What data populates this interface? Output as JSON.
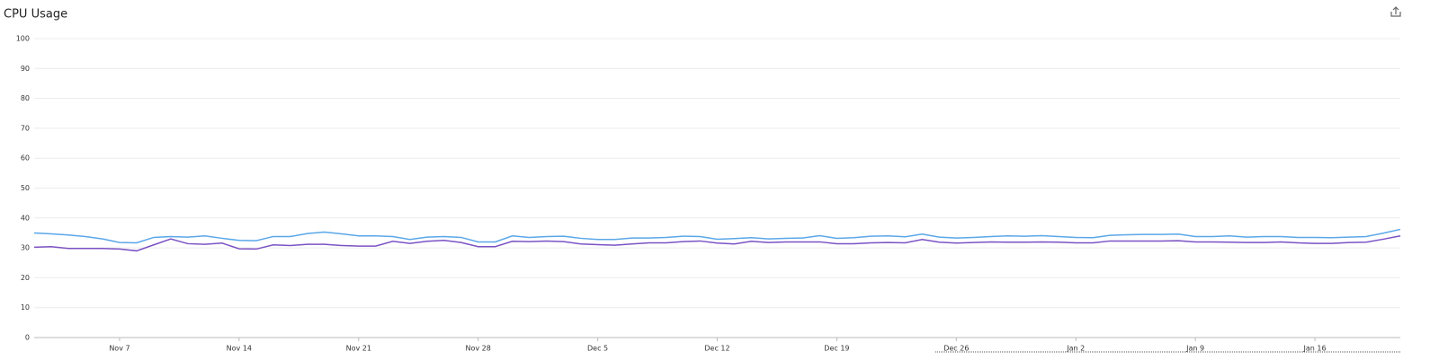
{
  "chart_data": {
    "type": "line",
    "title": "CPU Usage",
    "categories": [
      null,
      null,
      null,
      null,
      null,
      "Nov 7",
      null,
      null,
      null,
      null,
      null,
      null,
      "Nov 14",
      null,
      null,
      null,
      null,
      null,
      null,
      "Nov 21",
      null,
      null,
      null,
      null,
      null,
      null,
      "Nov 28",
      null,
      null,
      null,
      null,
      null,
      null,
      "Dec 5",
      null,
      null,
      null,
      null,
      null,
      null,
      "Dec 12",
      null,
      null,
      null,
      null,
      null,
      null,
      "Dec 19",
      null,
      null,
      null,
      null,
      null,
      null,
      "Dec 26",
      null,
      null,
      null,
      null,
      null,
      null,
      "Jan 2",
      null,
      null,
      null,
      null,
      null,
      null,
      "Jan 9",
      null,
      null,
      null,
      null,
      null,
      null,
      "Jan 16",
      null,
      null,
      null,
      null,
      null
    ],
    "series": [
      {
        "color": "#5aa7e8",
        "values": [
          35,
          34.7,
          34.3,
          33.8,
          33,
          31.8,
          31.7,
          33.5,
          33.8,
          33.6,
          34,
          33.2,
          32.5,
          32.4,
          33.8,
          33.8,
          34.8,
          35.3,
          34.7,
          34,
          34,
          33.8,
          32.8,
          33.6,
          33.8,
          33.5,
          32,
          32,
          34,
          33.5,
          33.8,
          33.9,
          33.2,
          32.8,
          32.8,
          33.3,
          33.3,
          33.5,
          33.9,
          33.8,
          32.9,
          33.1,
          33.4,
          33,
          33.2,
          33.3,
          34.1,
          33.2,
          33.4,
          33.9,
          34,
          33.7,
          34.6,
          33.6,
          33.3,
          33.5,
          33.8,
          34,
          33.9,
          34.1,
          33.8,
          33.5,
          33.4,
          34.2,
          34.4,
          34.5,
          34.5,
          34.6,
          33.8,
          33.8,
          34,
          33.6,
          33.8,
          33.8,
          33.5,
          33.5,
          33.4,
          33.6,
          33.8,
          34.9,
          36.2
        ]
      },
      {
        "color": "#7b52c4",
        "values": [
          30.2,
          30.4,
          29.8,
          29.8,
          29.8,
          29.6,
          29,
          31,
          33,
          31.4,
          31.2,
          31.6,
          29.7,
          29.6,
          31,
          30.8,
          31.2,
          31.2,
          30.8,
          30.6,
          30.6,
          32.2,
          31.5,
          32.2,
          32.5,
          31.8,
          30.4,
          30.4,
          32.2,
          32.1,
          32.3,
          32.1,
          31.3,
          31.1,
          30.9,
          31.3,
          31.7,
          31.7,
          32.1,
          32.3,
          31.6,
          31.3,
          32.2,
          31.8,
          32,
          32,
          32,
          31.4,
          31.4,
          31.7,
          31.8,
          31.7,
          32.8,
          31.9,
          31.6,
          31.8,
          32,
          31.9,
          31.9,
          32,
          31.9,
          31.7,
          31.7,
          32.3,
          32.3,
          32.3,
          32.3,
          32.4,
          32,
          32,
          31.9,
          31.8,
          31.8,
          32,
          31.7,
          31.5,
          31.5,
          31.8,
          31.9,
          32.9,
          34
        ]
      }
    ],
    "ylim": [
      0,
      100
    ],
    "yticks": [
      0,
      10,
      20,
      30,
      40,
      50,
      60,
      70,
      80,
      90,
      100
    ],
    "grid": true
  }
}
